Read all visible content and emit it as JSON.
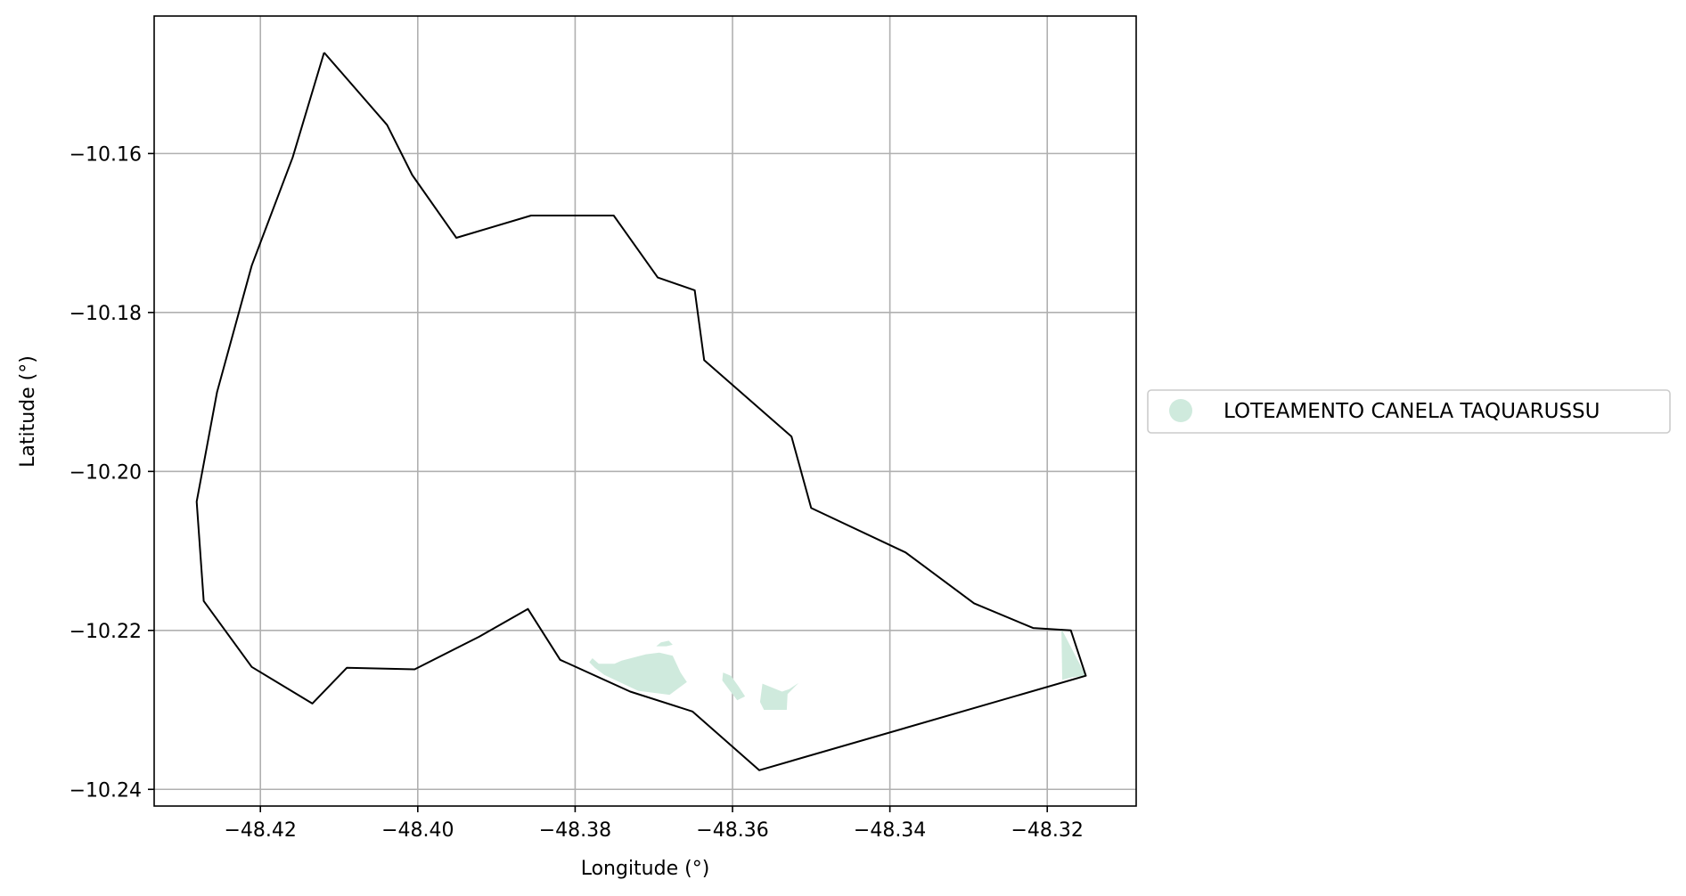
{
  "chart_data": {
    "type": "map",
    "xlabel": "Longitude (°)",
    "ylabel": "Latitude (°)",
    "xlim": [
      -48.4335,
      -48.3087
    ],
    "ylim": [
      -10.2421,
      -10.1427
    ],
    "grid": true,
    "x_ticks": [
      -48.42,
      -48.4,
      -48.38,
      -48.36,
      -48.34,
      -48.32
    ],
    "x_tick_labels": [
      "−48.42",
      "−48.40",
      "−48.38",
      "−48.36",
      "−48.34",
      "−48.32"
    ],
    "y_ticks": [
      -10.16,
      -10.18,
      -10.2,
      -10.22,
      -10.24
    ],
    "y_tick_labels": [
      "−10.16",
      "−10.18",
      "−10.20",
      "−10.22",
      "−10.24"
    ],
    "boundary": {
      "stroke": "#000000",
      "points": [
        [
          -48.4119,
          -10.1473
        ],
        [
          -48.4039,
          -10.1564
        ],
        [
          -48.4007,
          -10.1627
        ],
        [
          -48.3951,
          -10.1706
        ],
        [
          -48.3856,
          -10.1678
        ],
        [
          -48.3751,
          -10.1678
        ],
        [
          -48.3695,
          -10.1756
        ],
        [
          -48.3648,
          -10.1772
        ],
        [
          -48.3636,
          -10.186
        ],
        [
          -48.3525,
          -10.1956
        ],
        [
          -48.35,
          -10.2046
        ],
        [
          -48.338,
          -10.2102
        ],
        [
          -48.3293,
          -10.2166
        ],
        [
          -48.3218,
          -10.2197
        ],
        [
          -48.317,
          -10.22
        ],
        [
          -48.3151,
          -10.2257
        ],
        [
          -48.3566,
          -10.2376
        ],
        [
          -48.3651,
          -10.2302
        ],
        [
          -48.373,
          -10.2277
        ],
        [
          -48.3819,
          -10.2237
        ],
        [
          -48.386,
          -10.2173
        ],
        [
          -48.3922,
          -10.2208
        ],
        [
          -48.4004,
          -10.2249
        ],
        [
          -48.409,
          -10.2247
        ],
        [
          -48.4134,
          -10.2292
        ],
        [
          -48.4211,
          -10.2246
        ],
        [
          -48.4272,
          -10.2163
        ],
        [
          -48.4281,
          -10.2038
        ],
        [
          -48.4255,
          -10.19
        ],
        [
          -48.4211,
          -10.1741
        ],
        [
          -48.4159,
          -10.1605
        ],
        [
          -48.4119,
          -10.1473
        ]
      ]
    },
    "series": [
      {
        "name": "LOTEAMENTO CANELA TAQUARUSSU",
        "color": "#cfeadd",
        "polygons": [
          [
            [
              -48.3778,
              -10.2235
            ],
            [
              -48.377,
              -10.2242
            ],
            [
              -48.375,
              -10.2242
            ],
            [
              -48.3741,
              -10.2238
            ],
            [
              -48.371,
              -10.223
            ],
            [
              -48.3693,
              -10.2228
            ],
            [
              -48.3676,
              -10.2232
            ],
            [
              -48.3666,
              -10.2253
            ],
            [
              -48.3658,
              -10.2265
            ],
            [
              -48.368,
              -10.2281
            ],
            [
              -48.372,
              -10.2276
            ],
            [
              -48.3763,
              -10.2256
            ],
            [
              -48.3775,
              -10.2247
            ],
            [
              -48.3782,
              -10.224
            ]
          ],
          [
            [
              -48.3697,
              -10.222
            ],
            [
              -48.3691,
              -10.2215
            ],
            [
              -48.3681,
              -10.2213
            ],
            [
              -48.3676,
              -10.2218
            ],
            [
              -48.3684,
              -10.222
            ]
          ],
          [
            [
              -48.3612,
              -10.2253
            ],
            [
              -48.3602,
              -10.2257
            ],
            [
              -48.3592,
              -10.2271
            ],
            [
              -48.3584,
              -10.2283
            ],
            [
              -48.3594,
              -10.2288
            ],
            [
              -48.3604,
              -10.2275
            ],
            [
              -48.3613,
              -10.2263
            ]
          ],
          [
            [
              -48.3562,
              -10.2267
            ],
            [
              -48.3537,
              -10.2277
            ],
            [
              -48.3528,
              -10.2274
            ],
            [
              -48.3516,
              -10.2266
            ],
            [
              -48.353,
              -10.228
            ],
            [
              -48.3531,
              -10.23
            ],
            [
              -48.356,
              -10.23
            ],
            [
              -48.3565,
              -10.229
            ]
          ],
          [
            [
              -48.3182,
              -10.2198
            ],
            [
              -48.3151,
              -10.2257
            ],
            [
              -48.3168,
              -10.2259
            ],
            [
              -48.318,
              -10.2262
            ],
            [
              -48.3181,
              -10.2262
            ]
          ]
        ]
      }
    ],
    "legend": {
      "placement": "outside-right"
    }
  }
}
